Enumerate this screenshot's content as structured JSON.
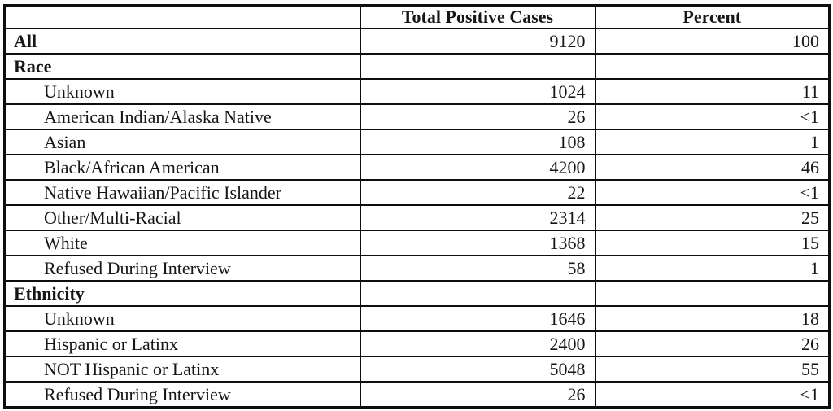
{
  "chart_data": {
    "type": "table",
    "columns": [
      "",
      "Total Positive Cases",
      "Percent"
    ],
    "rows": [
      {
        "label": "All",
        "cases": "9120",
        "percent": "100"
      },
      {
        "label": "Race",
        "cases": "",
        "percent": ""
      },
      {
        "label": "Unknown",
        "cases": "1024",
        "percent": "11"
      },
      {
        "label": "American Indian/Alaska Native",
        "cases": "26",
        "percent": "<1"
      },
      {
        "label": "Asian",
        "cases": "108",
        "percent": "1"
      },
      {
        "label": "Black/African American",
        "cases": "4200",
        "percent": "46"
      },
      {
        "label": "Native Hawaiian/Pacific Islander",
        "cases": "22",
        "percent": "<1"
      },
      {
        "label": "Other/Multi-Racial",
        "cases": "2314",
        "percent": "25"
      },
      {
        "label": "White",
        "cases": "1368",
        "percent": "15"
      },
      {
        "label": "Refused During Interview",
        "cases": "58",
        "percent": "1"
      },
      {
        "label": "Ethnicity",
        "cases": "",
        "percent": ""
      },
      {
        "label": "Unknown",
        "cases": "1646",
        "percent": "18"
      },
      {
        "label": "Hispanic or Latinx",
        "cases": "2400",
        "percent": "26"
      },
      {
        "label": "NOT Hispanic or Latinx",
        "cases": "5048",
        "percent": "55"
      },
      {
        "label": "Refused During Interview",
        "cases": "26",
        "percent": "<1"
      }
    ]
  },
  "colors": {
    "border": "#0e0e0e",
    "text": "#161616",
    "background": "#ffffff"
  }
}
